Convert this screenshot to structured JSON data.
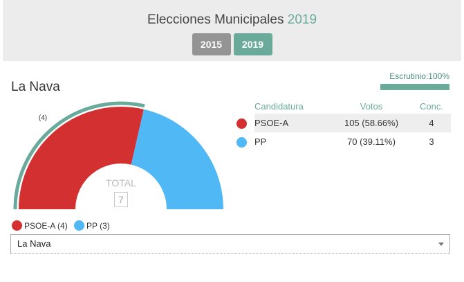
{
  "header": {
    "title_prefix": "Elecciones Municipales",
    "title_year": "2019",
    "years": [
      {
        "label": "2015",
        "active": false
      },
      {
        "label": "2019",
        "active": true
      }
    ]
  },
  "municipality": {
    "name": "La Nava"
  },
  "scrutiny": {
    "label": "Escrutinio:100%",
    "percent": 100
  },
  "chart_data": {
    "type": "pie",
    "total_label": "TOTAL",
    "total_seats": "7",
    "parties": [
      {
        "name": "PSOE-A",
        "seats": 4,
        "seat_label": "(4)",
        "color": "#d33131",
        "winner": true
      },
      {
        "name": "PP",
        "seats": 3,
        "seat_label": "",
        "color": "#4fb8f5",
        "winner": false
      }
    ],
    "winner_ring_color": "#6aaa9a"
  },
  "results": {
    "columns": {
      "party": "Candidatura",
      "votes": "Votos",
      "seats": "Conc."
    },
    "rows": [
      {
        "party": "PSOE-A",
        "votes": "105 (58.66%)",
        "seats": "4",
        "color": "#d33131"
      },
      {
        "party": "PP",
        "votes": "70 (39.11%)",
        "seats": "3",
        "color": "#4fb8f5"
      }
    ]
  },
  "legend": [
    {
      "label": "PSOE-A (4)",
      "color": "#d33131"
    },
    {
      "label": "PP (3)",
      "color": "#4fb8f5"
    }
  ],
  "select": {
    "value": "La Nava"
  }
}
